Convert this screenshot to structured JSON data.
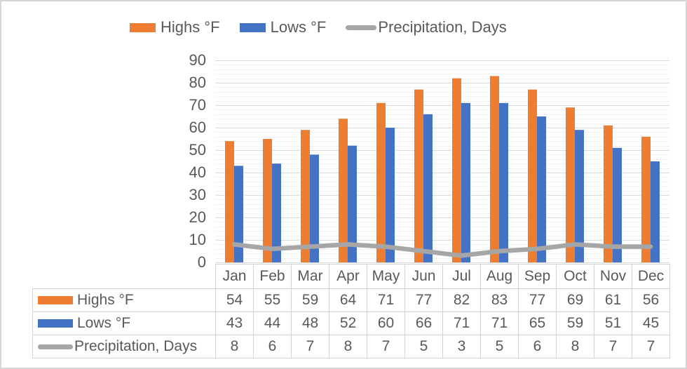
{
  "window": {
    "background": "#FFFFFF",
    "border_color": "#D6D6D6",
    "text_color": "#595959"
  },
  "grid": {
    "major_color": "#D9D9D9",
    "minor_color": "#F2F2F2"
  },
  "table": {
    "border_color": "#D4D4D4",
    "shows_legend_keys": true
  },
  "chart_data": {
    "type": "combo",
    "title": "",
    "categories": [
      "Jan",
      "Feb",
      "Mar",
      "Apr",
      "May",
      "Jun",
      "Jul",
      "Aug",
      "Sep",
      "Oct",
      "Nov",
      "Dec"
    ],
    "series": [
      {
        "name": "Highs °F",
        "type": "bar",
        "color": "#ED7D31",
        "values": [
          54,
          55,
          59,
          64,
          71,
          77,
          82,
          83,
          77,
          69,
          61,
          56
        ]
      },
      {
        "name": "Lows °F",
        "type": "bar",
        "color": "#4472C4",
        "values": [
          43,
          44,
          48,
          52,
          60,
          66,
          71,
          71,
          65,
          59,
          51,
          45
        ]
      },
      {
        "name": "Precipitation, Days",
        "type": "line",
        "color": "#A6A6A6",
        "values": [
          8,
          6,
          7,
          8,
          7,
          5,
          3,
          5,
          6,
          8,
          7,
          7
        ]
      }
    ],
    "y_axis": {
      "min": 0,
      "max": 90,
      "major_step": 10,
      "minor_step": 2,
      "tick_labels": [
        "90",
        "80",
        "70",
        "60",
        "50",
        "40",
        "30",
        "20",
        "10",
        "0"
      ]
    },
    "xlabel": "",
    "ylabel": "",
    "legend_position": "top",
    "gridlines": "horizontal major and minor",
    "data_table": true
  }
}
